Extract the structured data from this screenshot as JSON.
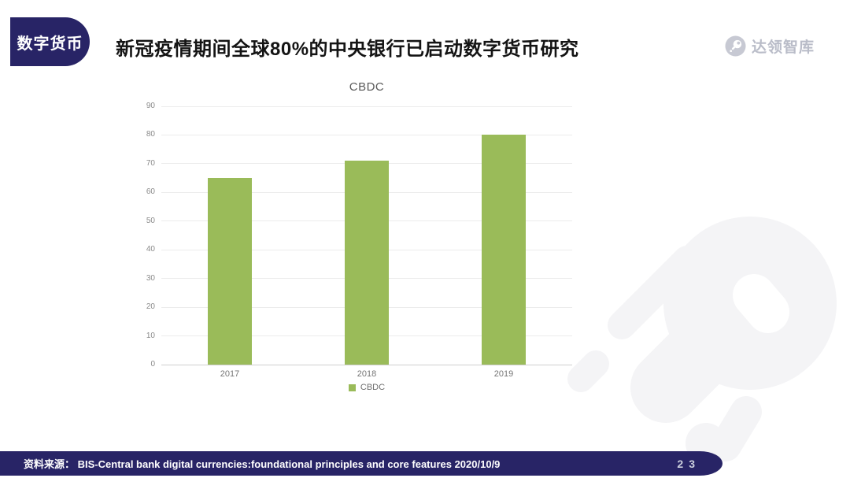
{
  "theme": {
    "navy": "#282466",
    "bar_green": "#9abb59",
    "decoration_gray": "#f4f4f6",
    "logo_circle_gray": "#c7c9d3",
    "logo_text_gray": "#b9bcc8"
  },
  "badge": {
    "label": "数字货币"
  },
  "header": {
    "title": "新冠疫情期间全球80%的中央银行已启动数字货币研究"
  },
  "logo": {
    "text": "达领智库",
    "icon": "meteor-icon"
  },
  "chart_data": {
    "type": "bar",
    "title": "CBDC",
    "categories": [
      "2017",
      "2018",
      "2019"
    ],
    "series": [
      {
        "name": "CBDC",
        "values": [
          65,
          71,
          80
        ]
      }
    ],
    "ylim": [
      0,
      90
    ],
    "yticks": [
      90,
      80,
      70,
      60,
      50,
      40,
      30,
      20,
      10,
      0
    ],
    "grid": true,
    "legend_position": "bottom",
    "bar_color": "#9abb59"
  },
  "footer": {
    "source_label": "资料来源：",
    "source_text": "BIS-Central bank digital currencies:foundational principles and core features 2020/10/9",
    "page_number": "23"
  }
}
